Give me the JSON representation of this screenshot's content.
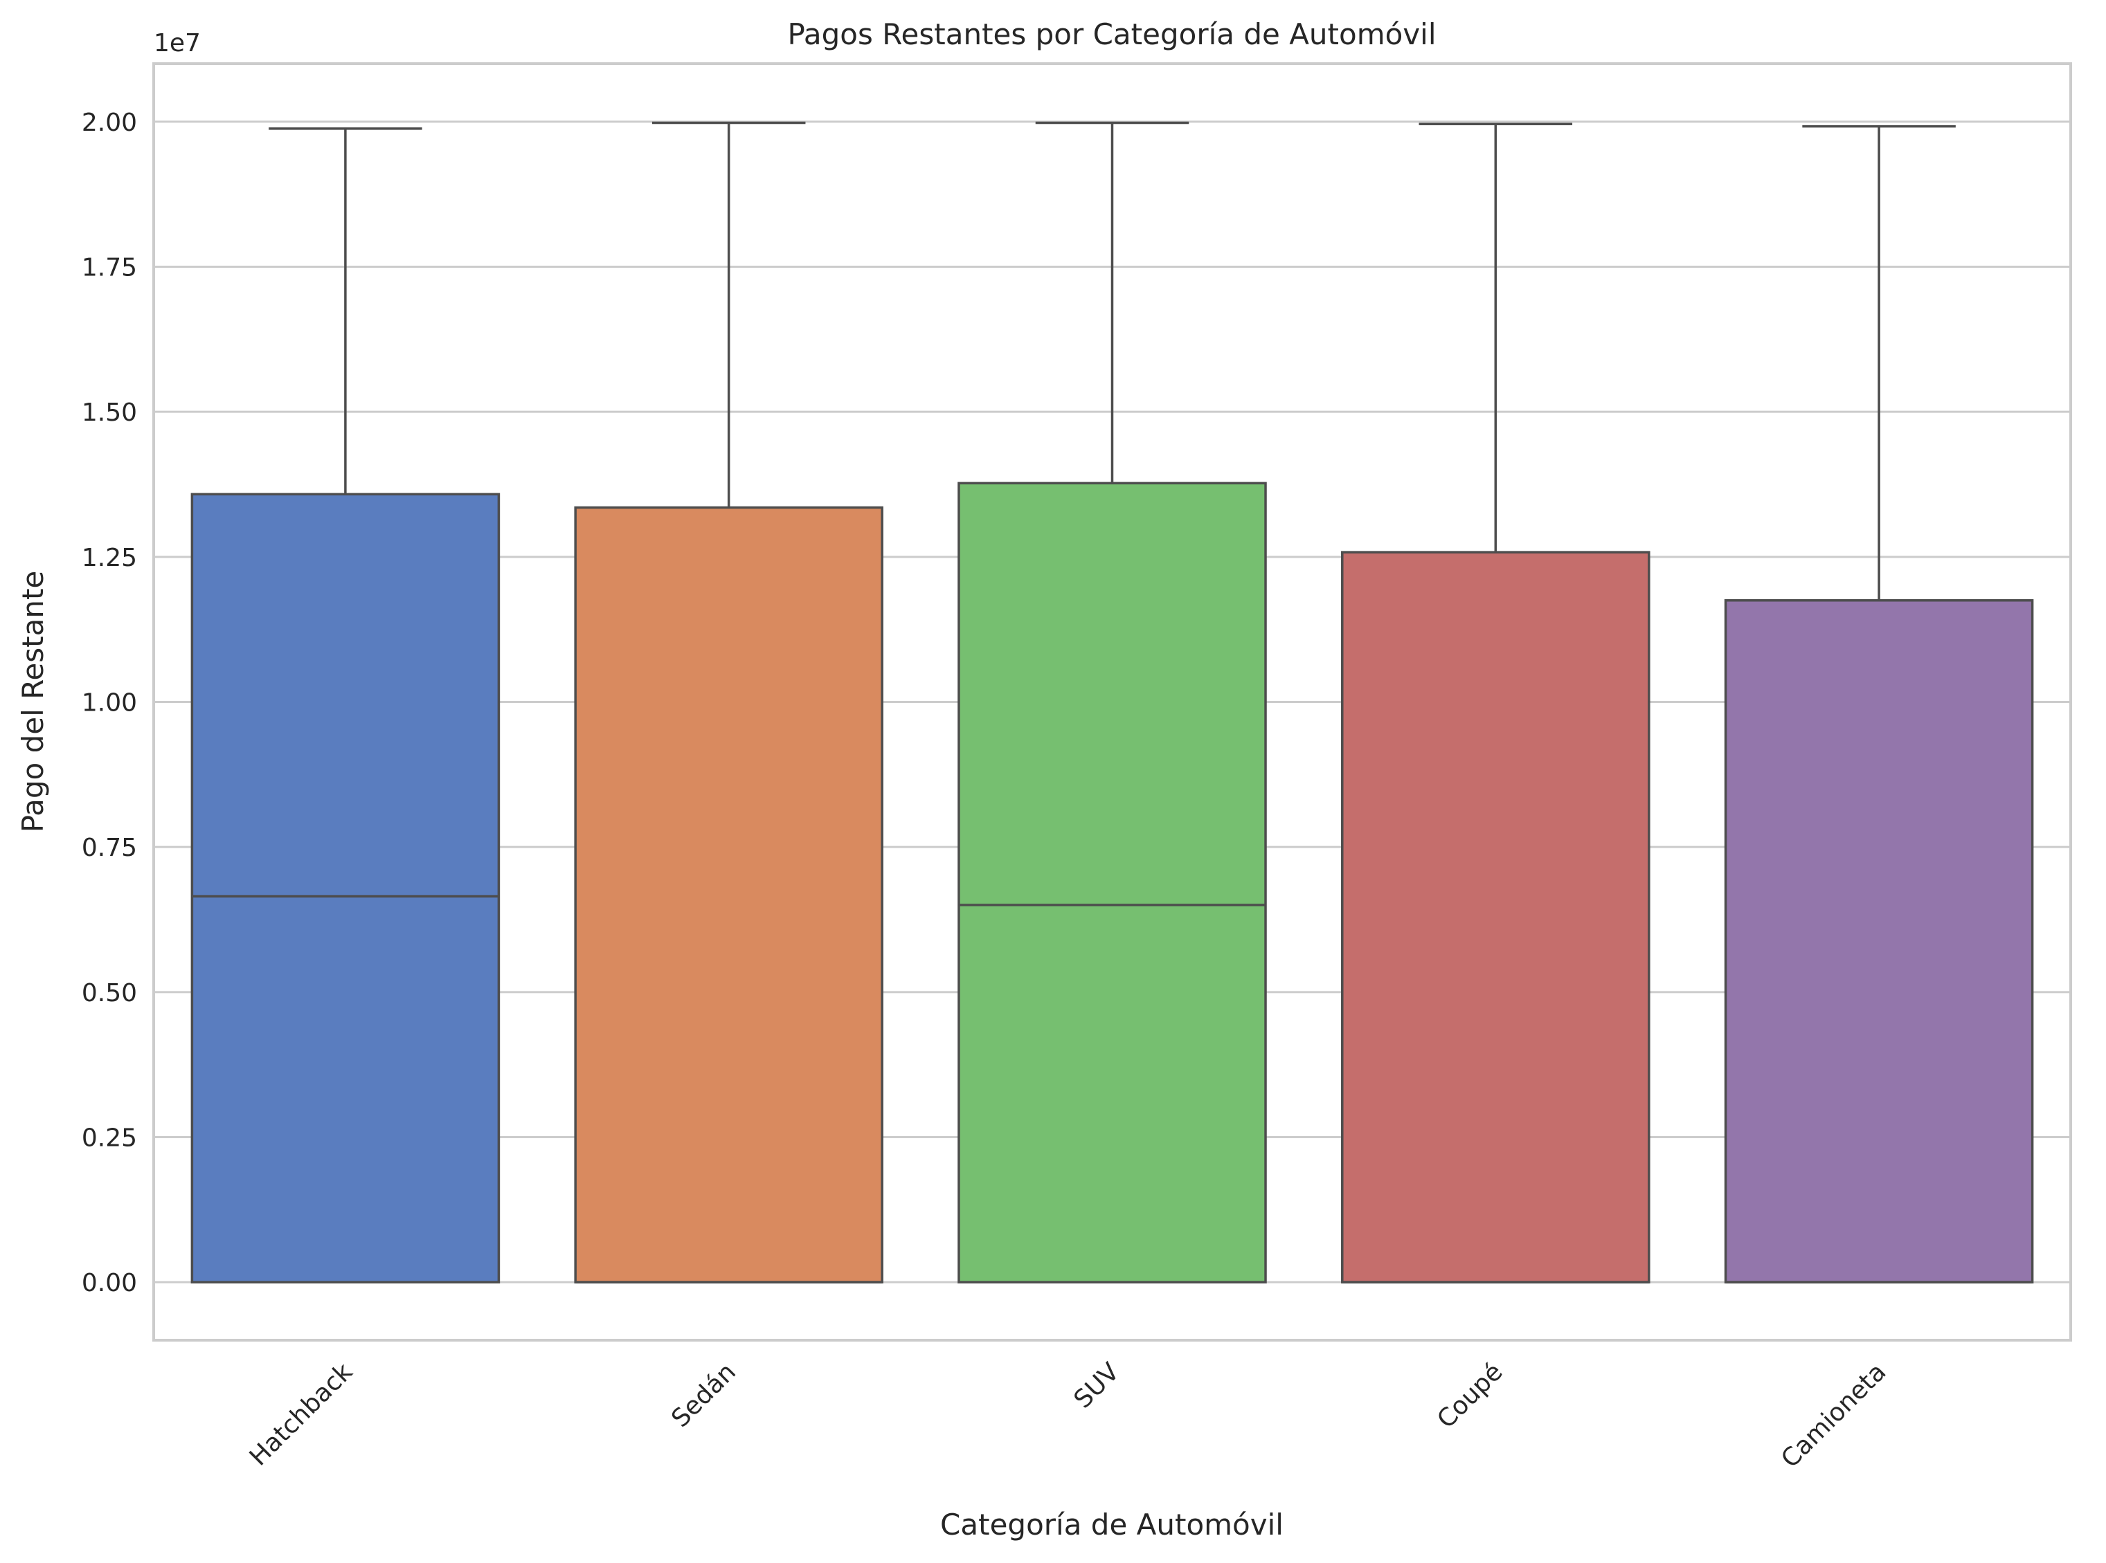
{
  "chart_data": {
    "type": "box",
    "title": "Pagos Restantes por Categoría de Automóvil",
    "xlabel": "Categoría de Automóvil",
    "ylabel": "Pago del Restante",
    "offset_label": "1e7",
    "y_unit_multiplier": 10000000,
    "ylim": [
      -0.1,
      2.1
    ],
    "yticks": [
      0,
      0.25,
      0.5,
      0.75,
      1.0,
      1.25,
      1.5,
      1.75,
      2.0
    ],
    "ytick_labels": [
      "0.00",
      "0.25",
      "0.50",
      "0.75",
      "1.00",
      "1.25",
      "1.50",
      "1.75",
      "2.00"
    ],
    "grid": true,
    "categories": [
      "Hatchback",
      "Sedán",
      "SUV",
      "Coupé",
      "Camioneta"
    ],
    "boxes": [
      {
        "category": "Hatchback",
        "whisker_low": 0,
        "q1": 0,
        "median": 0.665,
        "q3": 1.358,
        "whisker_high": 1.988,
        "color": "#5a7dbf"
      },
      {
        "category": "Sedán",
        "whisker_low": 0,
        "q1": 0,
        "median": 0,
        "q3": 1.335,
        "whisker_high": 1.998,
        "color": "#d98a5f"
      },
      {
        "category": "SUV",
        "whisker_low": 0,
        "q1": 0,
        "median": 0.65,
        "q3": 1.377,
        "whisker_high": 1.998,
        "color": "#76bf70"
      },
      {
        "category": "Coupé",
        "whisker_low": 0,
        "q1": 0,
        "median": 0,
        "q3": 1.258,
        "whisker_high": 1.996,
        "color": "#c56e6c"
      },
      {
        "category": "Camioneta",
        "whisker_low": 0,
        "q1": 0,
        "median": 0,
        "q3": 1.175,
        "whisker_high": 1.992,
        "color": "#9376ab"
      }
    ]
  }
}
